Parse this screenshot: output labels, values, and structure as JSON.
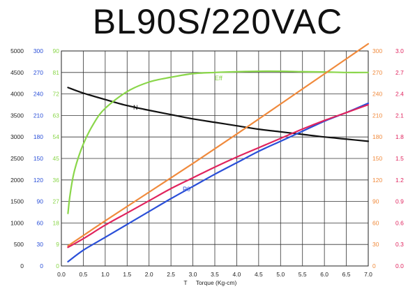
{
  "chart_data": {
    "type": "line",
    "title": "BL90S/220VAC",
    "xlabel_prefix": "T",
    "xlabel": "Torque (Kg-cm)",
    "xlim": [
      0,
      7
    ],
    "x_ticks": [
      "0.0",
      "0.5",
      "1.0",
      "1.5",
      "2.0",
      "2.5",
      "3.0",
      "3.5",
      "4.0",
      "4.5",
      "5.0",
      "5.5",
      "6.0",
      "6.5",
      "7.0"
    ],
    "grid": true,
    "axes": [
      {
        "id": "speed",
        "side": "left",
        "color": "#222222",
        "range": [
          0,
          5000
        ],
        "ticks": [
          "0",
          "500",
          "1000",
          "1500",
          "2000",
          "2500",
          "3000",
          "3500",
          "4000",
          "4500",
          "5000"
        ]
      },
      {
        "id": "output",
        "side": "left",
        "color": "#2a4fd8",
        "range": [
          0,
          300
        ],
        "ticks": [
          "0",
          "30",
          "60",
          "90",
          "120",
          "150",
          "180",
          "210",
          "240",
          "270",
          "300"
        ]
      },
      {
        "id": "efficiency",
        "side": "left",
        "color": "#8ad64a",
        "range": [
          0,
          90
        ],
        "ticks": [
          "0",
          "9",
          "18",
          "27",
          "36",
          "45",
          "54",
          "63",
          "72",
          "81",
          "90"
        ]
      },
      {
        "id": "input",
        "side": "right",
        "color": "#f08a3c",
        "range": [
          0,
          300
        ],
        "ticks": [
          "0",
          "30",
          "60",
          "90",
          "120",
          "150",
          "180",
          "210",
          "240",
          "270",
          "300"
        ]
      },
      {
        "id": "current",
        "side": "right",
        "color": "#e0245e",
        "range": [
          0,
          3.0
        ],
        "ticks": [
          "0.0",
          "0.3",
          "0.6",
          "0.9",
          "1.2",
          "1.5",
          "1.8",
          "2.1",
          "2.4",
          "2.7",
          "3.0"
        ]
      }
    ],
    "series": [
      {
        "name": "N",
        "axis": "speed",
        "color": "#111111",
        "x": [
          0.15,
          0.5,
          1.0,
          1.5,
          2.0,
          2.5,
          3.0,
          3.5,
          4.0,
          4.5,
          5.0,
          5.5,
          6.0,
          6.5,
          7.0
        ],
        "y": [
          4150,
          4020,
          3870,
          3730,
          3620,
          3520,
          3420,
          3340,
          3260,
          3180,
          3120,
          3060,
          3000,
          2950,
          2900
        ]
      },
      {
        "name": "Eff",
        "axis": "efficiency",
        "color": "#8ad64a",
        "x": [
          0.15,
          0.2,
          0.3,
          0.5,
          0.75,
          1.0,
          1.5,
          2.0,
          2.5,
          3.0,
          3.5,
          4.0,
          4.5,
          5.0,
          5.5,
          6.0,
          6.5,
          7.0
        ],
        "y": [
          22,
          30,
          40,
          51,
          60,
          66,
          73,
          77,
          79,
          80.5,
          81,
          81.3,
          81.5,
          81.5,
          81.3,
          81.2,
          81,
          81
        ]
      },
      {
        "name": "P0",
        "axis": "output",
        "color": "#2a4fd8",
        "x": [
          0.15,
          0.5,
          1.0,
          1.5,
          2.0,
          2.5,
          3.0,
          3.5,
          4.0,
          4.5,
          5.0,
          5.5,
          6.0,
          6.5,
          7.0
        ],
        "y": [
          6,
          22,
          40,
          58,
          76,
          94,
          111,
          128,
          144,
          160,
          174,
          188,
          202,
          214,
          227
        ]
      },
      {
        "name": "",
        "axis": "input",
        "color": "#f08a3c",
        "x": [
          0.15,
          1.0,
          2.0,
          3.0,
          4.0,
          5.0,
          6.0,
          7.0
        ],
        "y": [
          28,
          63,
          103,
          143,
          184,
          226,
          268,
          310
        ]
      },
      {
        "name": "",
        "axis": "current",
        "color": "#e0245e",
        "x": [
          0.15,
          0.5,
          1.0,
          1.5,
          2.0,
          2.5,
          3.0,
          3.5,
          4.0,
          4.5,
          5.0,
          5.5,
          6.0,
          6.5,
          7.0
        ],
        "y": [
          0.26,
          0.38,
          0.57,
          0.74,
          0.91,
          1.08,
          1.23,
          1.38,
          1.52,
          1.65,
          1.78,
          1.91,
          2.03,
          2.14,
          2.25
        ]
      }
    ]
  }
}
